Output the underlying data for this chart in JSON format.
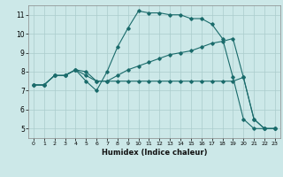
{
  "xlabel": "Humidex (Indice chaleur)",
  "bg_color": "#cce8e8",
  "line_color": "#1a6b6b",
  "grid_color": "#aacccc",
  "xlim": [
    -0.5,
    23.5
  ],
  "ylim": [
    4.5,
    11.5
  ],
  "xticks": [
    0,
    1,
    2,
    3,
    4,
    5,
    6,
    7,
    8,
    9,
    10,
    11,
    12,
    13,
    14,
    15,
    16,
    17,
    18,
    19,
    20,
    21,
    22,
    23
  ],
  "yticks": [
    5,
    6,
    7,
    8,
    9,
    10,
    11
  ],
  "line1_x": [
    0,
    1,
    2,
    3,
    4,
    5,
    6,
    7,
    8,
    9,
    10,
    11,
    12,
    13,
    14,
    15,
    16,
    17,
    18,
    19,
    20,
    21,
    22,
    23
  ],
  "line1_y": [
    7.3,
    7.3,
    7.8,
    7.8,
    8.1,
    7.5,
    7.0,
    8.0,
    9.3,
    10.3,
    11.2,
    11.1,
    11.1,
    11.0,
    11.0,
    10.8,
    10.8,
    10.5,
    9.75,
    7.7,
    5.5,
    5.0,
    5.0,
    5.0
  ],
  "line2_x": [
    0,
    1,
    2,
    3,
    4,
    5,
    6,
    7,
    8,
    9,
    10,
    11,
    12,
    13,
    14,
    15,
    16,
    17,
    18,
    19,
    20,
    21,
    22,
    23
  ],
  "line2_y": [
    7.3,
    7.3,
    7.8,
    7.8,
    8.1,
    7.8,
    7.5,
    7.5,
    7.8,
    8.1,
    8.3,
    8.5,
    8.7,
    8.9,
    9.0,
    9.1,
    9.3,
    9.5,
    9.6,
    9.75,
    7.7,
    5.5,
    5.0,
    5.0
  ],
  "line3_x": [
    0,
    1,
    2,
    3,
    4,
    5,
    6,
    7,
    8,
    9,
    10,
    11,
    12,
    13,
    14,
    15,
    16,
    17,
    18,
    19,
    20,
    21,
    22,
    23
  ],
  "line3_y": [
    7.3,
    7.3,
    7.8,
    7.8,
    8.1,
    8.0,
    7.5,
    7.5,
    7.5,
    7.5,
    7.5,
    7.5,
    7.5,
    7.5,
    7.5,
    7.5,
    7.5,
    7.5,
    7.5,
    7.5,
    7.7,
    5.5,
    5.0,
    5.0
  ]
}
